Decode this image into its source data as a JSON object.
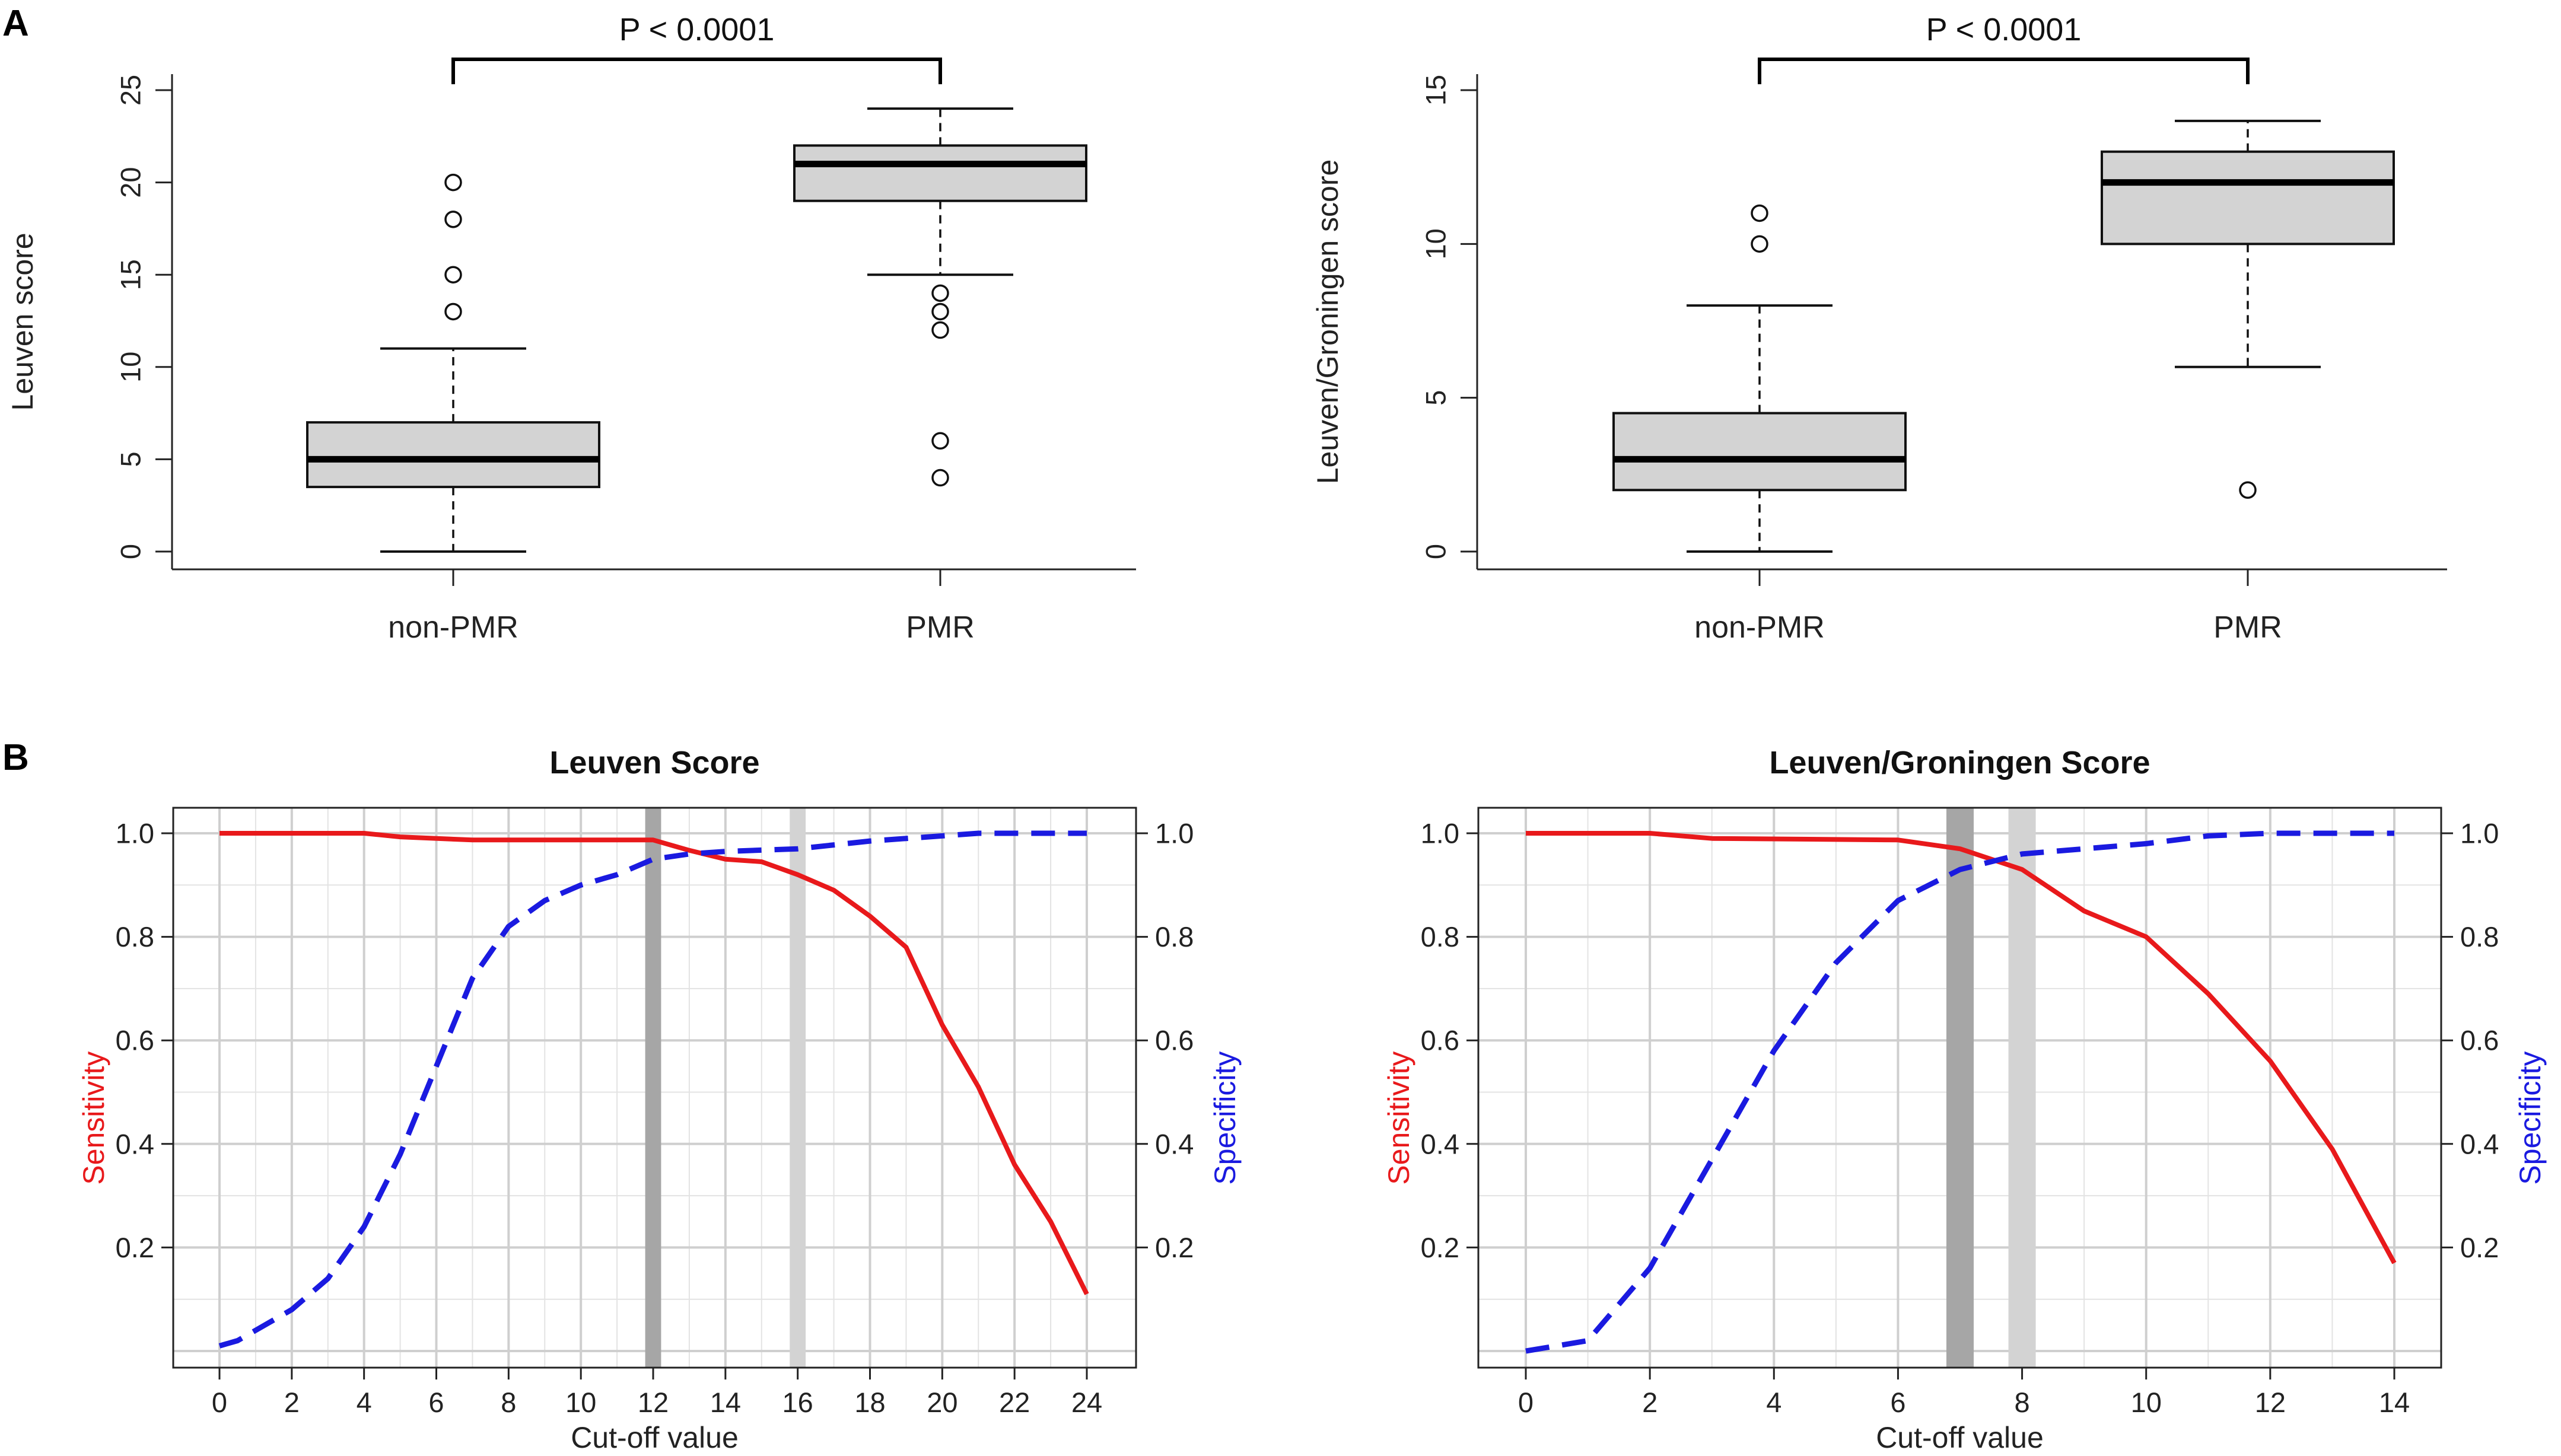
{
  "figure": {
    "panel_labels": [
      "A",
      "B"
    ]
  },
  "chart_data": [
    {
      "type": "box",
      "panel": "A",
      "ylabel": "Leuven score",
      "ylim": [
        0,
        25
      ],
      "yticks": [
        0,
        5,
        10,
        15,
        20,
        25
      ],
      "categories": [
        "non-PMR",
        "PMR"
      ],
      "significance": "P < 0.0001",
      "boxes": [
        {
          "name": "non-PMR",
          "min": 0,
          "q1": 3.5,
          "median": 5,
          "q3": 7,
          "max": 11,
          "outliers": [
            13,
            15,
            18,
            20
          ]
        },
        {
          "name": "PMR",
          "min": 15,
          "q1": 19,
          "median": 21,
          "q3": 22,
          "max": 24,
          "outliers": [
            4,
            6,
            12,
            13,
            14
          ]
        }
      ]
    },
    {
      "type": "box",
      "panel": "A",
      "ylabel": "Leuven/Groningen score",
      "ylim": [
        0,
        15
      ],
      "yticks": [
        0,
        5,
        10,
        15
      ],
      "categories": [
        "non-PMR",
        "PMR"
      ],
      "significance": "P < 0.0001",
      "boxes": [
        {
          "name": "non-PMR",
          "min": 0,
          "q1": 2,
          "median": 3,
          "q3": 4.5,
          "max": 8,
          "outliers": [
            10,
            11
          ]
        },
        {
          "name": "PMR",
          "min": 6,
          "q1": 10,
          "median": 12,
          "q3": 13,
          "max": 14,
          "outliers": [
            2
          ]
        }
      ]
    },
    {
      "type": "line",
      "panel": "B",
      "title": "Leuven Score",
      "xlabel": "Cut-off value",
      "ylabel_left": "Sensitivity",
      "ylabel_right": "Specificity",
      "xlim": [
        0,
        24
      ],
      "xticks": [
        0,
        2,
        4,
        6,
        8,
        10,
        12,
        14,
        16,
        18,
        20,
        22,
        24
      ],
      "ylim": [
        0,
        1.0
      ],
      "yticks": [
        0.2,
        0.4,
        0.6,
        0.8,
        1.0
      ],
      "tick_labels_left": [
        "0.2",
        "0.4",
        "0.6",
        "0.8",
        "1.0"
      ],
      "tick_labels_right": [
        "0.2",
        "0.4",
        "0.6",
        "0.8",
        "1.0"
      ],
      "highlight_bands": [
        {
          "x": 12,
          "shade": "dark"
        },
        {
          "x": 16,
          "shade": "light"
        }
      ],
      "series": [
        {
          "name": "Sensitivity",
          "color": "#e8191b",
          "style": "solid",
          "x": [
            0,
            4,
            5,
            7,
            12,
            13,
            14,
            15,
            16,
            17,
            18,
            19,
            20,
            21,
            22,
            23,
            24
          ],
          "y": [
            1.0,
            1.0,
            0.993,
            0.987,
            0.987,
            0.967,
            0.95,
            0.945,
            0.92,
            0.89,
            0.84,
            0.78,
            0.63,
            0.51,
            0.36,
            0.25,
            0.11
          ]
        },
        {
          "name": "Specificity",
          "color": "#1a1ae0",
          "style": "dashed",
          "x": [
            0,
            0.5,
            1,
            2,
            3,
            4,
            5,
            6,
            7,
            8,
            9,
            10,
            11,
            12,
            13,
            14,
            16,
            18,
            20,
            21,
            22,
            24
          ],
          "y": [
            0.01,
            0.02,
            0.04,
            0.08,
            0.14,
            0.24,
            0.38,
            0.55,
            0.72,
            0.82,
            0.87,
            0.9,
            0.92,
            0.95,
            0.96,
            0.965,
            0.97,
            0.985,
            0.995,
            1.0,
            1.0,
            1.0
          ]
        }
      ]
    },
    {
      "type": "line",
      "panel": "B",
      "title": "Leuven/Groningen Score",
      "xlabel": "Cut-off value",
      "ylabel_left": "Sensitivity",
      "ylabel_right": "Specificity",
      "xlim": [
        0,
        14
      ],
      "xticks": [
        0,
        2,
        4,
        6,
        8,
        10,
        12,
        14
      ],
      "ylim": [
        0,
        1.0
      ],
      "yticks": [
        0.2,
        0.4,
        0.6,
        0.8,
        1.0
      ],
      "tick_labels_left": [
        "0.2",
        "0.4",
        "0.6",
        "0.8",
        "1.0"
      ],
      "tick_labels_right": [
        "0.2",
        "0.4",
        "0.6",
        "0.8",
        "1.0"
      ],
      "highlight_bands": [
        {
          "x": 7,
          "shade": "dark"
        },
        {
          "x": 8,
          "shade": "light"
        }
      ],
      "series": [
        {
          "name": "Sensitivity",
          "color": "#e8191b",
          "style": "solid",
          "x": [
            0,
            2,
            3,
            6,
            7,
            8,
            9,
            10,
            11,
            12,
            13,
            14
          ],
          "y": [
            1.0,
            1.0,
            0.99,
            0.987,
            0.97,
            0.93,
            0.85,
            0.8,
            0.69,
            0.56,
            0.39,
            0.17
          ]
        },
        {
          "name": "Specificity",
          "color": "#1a1ae0",
          "style": "dashed",
          "x": [
            0,
            1,
            2,
            3,
            4,
            5,
            6,
            7,
            8,
            9,
            10,
            11,
            12,
            13,
            14
          ],
          "y": [
            0.0,
            0.02,
            0.16,
            0.37,
            0.58,
            0.75,
            0.87,
            0.93,
            0.96,
            0.97,
            0.98,
            0.995,
            1.0,
            1.0,
            1.0
          ]
        }
      ]
    }
  ]
}
